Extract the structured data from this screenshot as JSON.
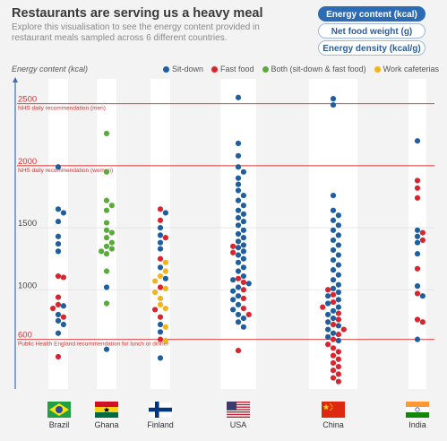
{
  "header": {
    "title": "Restaurants are serving us a heavy meal",
    "subtitle": "Explore this visualisation to see the energy content provided in restaurant meals sampled across 6 different countries."
  },
  "buttons": [
    {
      "label": "Energy content (kcal)",
      "active": true
    },
    {
      "label": "Net food weight (g)",
      "active": false
    },
    {
      "label": "Energy density (kcal/g)",
      "active": false
    }
  ],
  "colors": {
    "sit_down": "#1f5fa0",
    "fast_food": "#d9252f",
    "both": "#5bab3c",
    "work_cafeteria": "#f2b41c",
    "reference_line": "#d73030",
    "axis": "#3a6fb6",
    "column": "#ffffff",
    "background": "#f3f3f3"
  },
  "chart_data": {
    "type": "scatter",
    "ylabel": "Energy content (kcal)",
    "ylim": [
      200,
      2700
    ],
    "y_ticks": [
      600,
      1000,
      1500,
      2000,
      2500
    ],
    "categories": [
      "Brazil",
      "Ghana",
      "Finland",
      "USA",
      "China",
      "India"
    ],
    "legend": [
      {
        "key": "sit_down",
        "label": "Sit-down"
      },
      {
        "key": "fast_food",
        "label": "Fast food"
      },
      {
        "key": "both",
        "label": "Both (sit-down & fast food)"
      },
      {
        "key": "work_cafeteria",
        "label": "Work cafeterias"
      }
    ],
    "reference_lines": [
      {
        "value": 2500,
        "label": "NHS daily recommendation (men)"
      },
      {
        "value": 2000,
        "label": "NHS daily recommendation (women)"
      },
      {
        "value": 600,
        "label": "Public Health England recommendation for lunch or dinner"
      }
    ],
    "series": [
      {
        "country": "Brazil",
        "sit_down": [
          1990,
          1650,
          1620,
          1550,
          1430,
          1370,
          1310,
          870,
          800,
          750,
          720,
          650
        ],
        "fast_food": [
          1110,
          1100,
          940,
          880,
          850,
          780,
          460
        ]
      },
      {
        "country": "Ghana",
        "both": [
          2260,
          1950,
          1720,
          1680,
          1640,
          1540,
          1480,
          1460,
          1420,
          1380,
          1350,
          1330,
          1310,
          1290,
          1150,
          890
        ],
        "fast_food": [],
        "sit_down": [
          1020,
          520
        ]
      },
      {
        "country": "Finland",
        "sit_down": [
          1620,
          1500,
          1440,
          1380,
          1330,
          1180,
          1090,
          720,
          660,
          450
        ],
        "fast_food": [
          1650,
          1560,
          1420,
          1250,
          1020,
          840,
          780,
          600
        ],
        "work_cafeteria": [
          1220,
          1150,
          1110,
          1070,
          1010,
          980,
          930,
          880,
          850,
          700,
          590
        ]
      },
      {
        "country": "USA",
        "sit_down": [
          2550,
          2180,
          2080,
          1990,
          1950,
          1900,
          1850,
          1800,
          1760,
          1720,
          1680,
          1640,
          1610,
          1580,
          1550,
          1520,
          1480,
          1450,
          1420,
          1390,
          1360,
          1340,
          1310,
          1280,
          1250,
          1220,
          1180,
          1150,
          1110,
          1080,
          1050,
          1020,
          990,
          950,
          920,
          880,
          840,
          800,
          770,
          740,
          700
        ],
        "fast_food": [
          1350,
          1300,
          1090,
          1060,
          1000,
          930,
          850,
          800,
          510
        ]
      },
      {
        "country": "China",
        "sit_down": [
          2540,
          2490,
          1760,
          1640,
          1600,
          1560,
          1520,
          1480,
          1440,
          1400,
          1360,
          1320,
          1280,
          1240,
          1200,
          1160,
          1120,
          1080,
          1040,
          1010,
          980,
          950,
          920,
          890,
          860,
          830,
          800,
          770,
          740,
          710,
          680,
          650,
          620,
          590
        ],
        "fast_food": [
          1000,
          960,
          900,
          860,
          810,
          760,
          720,
          680,
          640,
          600,
          560,
          530,
          500,
          470,
          440,
          410,
          380,
          350,
          320,
          290,
          260
        ]
      },
      {
        "country": "India",
        "sit_down": [
          2200,
          1480,
          1430,
          1380,
          1290,
          1030,
          950,
          600
        ],
        "fast_food": [
          1880,
          1820,
          1740,
          1460,
          1400,
          1170,
          970,
          760,
          740
        ]
      }
    ]
  }
}
